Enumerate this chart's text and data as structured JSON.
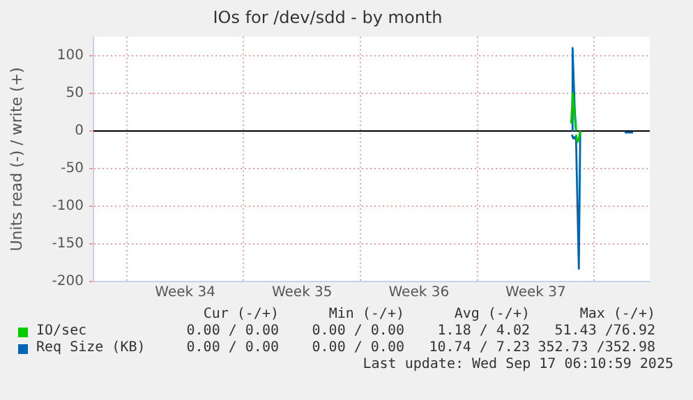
{
  "chart_data": {
    "type": "line",
    "title": "IOs for /dev/sdd - by month",
    "ylabel": "Units read (-) / write (+)",
    "xlim": [
      "2025-08-16",
      "2025-09-18T08:00"
    ],
    "xticks": [
      {
        "value": "2025-08-18",
        "label": null
      },
      {
        "value": "2025-08-21T12:00",
        "label": "Week 34"
      },
      {
        "value": "2025-08-25",
        "label": null
      },
      {
        "value": "2025-08-28T12:00",
        "label": "Week 35"
      },
      {
        "value": "2025-09-01",
        "label": null
      },
      {
        "value": "2025-09-04T12:00",
        "label": "Week 36"
      },
      {
        "value": "2025-09-08",
        "label": null
      },
      {
        "value": "2025-09-11T12:00",
        "label": "Week 37"
      },
      {
        "value": "2025-09-15",
        "label": null
      }
    ],
    "ylim": [
      -200,
      125
    ],
    "yticks": [
      -200,
      -150,
      -100,
      -50,
      0,
      50,
      100
    ],
    "grid": true,
    "legend": "bottom",
    "marker": "none",
    "line_style": "solid",
    "ref_lines": [
      {
        "axis": "y",
        "value": 0,
        "color": "#000000"
      }
    ],
    "series": [
      {
        "name": "IO/sec",
        "color": "#00cc00",
        "x": [
          "2025-09-13T15:00",
          "2025-09-13T17:00",
          "2025-09-13T19:00",
          "2025-09-13T22:00"
        ],
        "values": [
          10,
          50,
          30,
          0
        ]
      },
      {
        "color": "#00cc00",
        "x": [
          "2025-09-13T22:00",
          "2025-09-14T00:00",
          "2025-09-14T02:00",
          "2025-09-14T04:00"
        ],
        "values": [
          -5,
          -15,
          -10,
          0
        ]
      },
      {
        "name": "Req Size (KB)",
        "color": "#0066b3",
        "x": [
          "2025-09-13T16:00",
          "2025-09-13T17:00",
          "2025-09-13T20:00",
          "2025-09-13T22:00"
        ],
        "values": [
          0,
          110,
          30,
          0
        ]
      },
      {
        "color": "#0066b3",
        "x": [
          "2025-09-13T16:00",
          "2025-09-13T18:00",
          "2025-09-13T20:00",
          "2025-09-13T22:00",
          "2025-09-14T02:00",
          "2025-09-14T04:00"
        ],
        "values": [
          -5,
          -10,
          -8,
          -12,
          -183,
          0
        ]
      },
      {
        "color": "#0066b3",
        "x": [
          "2025-09-16T20:00",
          "2025-09-17T02:00",
          "2025-09-17T08:00"
        ],
        "values": [
          -2,
          -2,
          -2
        ]
      }
    ],
    "annotations": [
      "Cur (-/+)",
      "Min (-/+)",
      "Avg (-/+)",
      "Max (-/+)",
      "0.00 / 0.00",
      "0.00 / 0.00",
      "1.18 / 4.02",
      "51.43 /76.92",
      "0.00 / 0.00",
      "0.00 / 0.00",
      "10.74 / 7.23",
      "352.73 /352.98",
      "Last update: Wed Sep 17 06:10:59 2025"
    ]
  }
}
